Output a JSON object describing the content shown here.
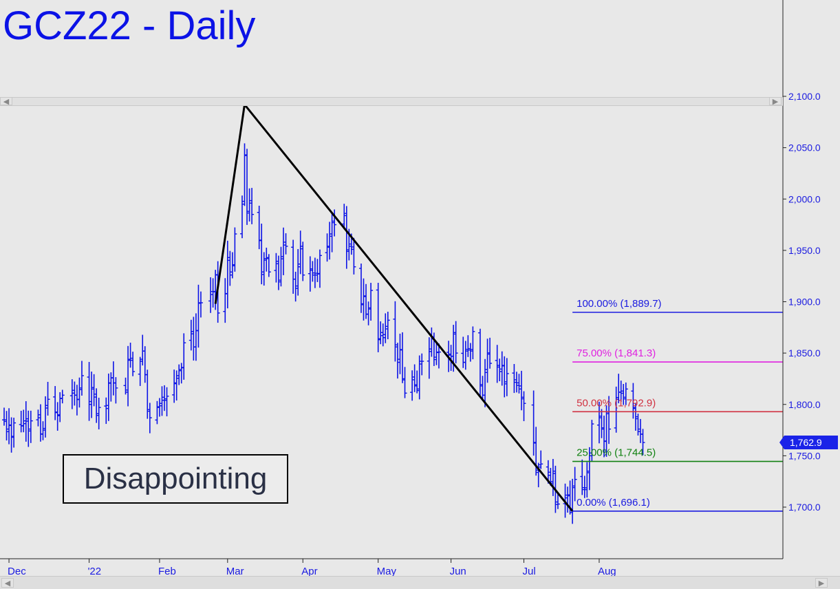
{
  "title": "GCZ22 - Daily",
  "annotation": "Disappointing",
  "last_price_label": "1,762.9",
  "colors": {
    "price_bars": "#0b12e6",
    "trendline": "#000000",
    "fib_100": "#1a1ae0",
    "fib_75": "#e020e0",
    "fib_50": "#d03040",
    "fib_25": "#108010",
    "fib_0": "#1a1ae0",
    "background": "#e8e8e8"
  },
  "scrollbar": {
    "left_icon": "chevron-left-icon",
    "right_icon": "chevron-right-icon"
  },
  "chart_data": {
    "type": "ohlc",
    "y_ticks": [
      "2,100.0",
      "2,050.0",
      "2,000.0",
      "1,950.0",
      "1,900.0",
      "1,850.0",
      "1,800.0",
      "1,750.0",
      "1,700.0"
    ],
    "y_tick_values": [
      2100,
      2050,
      2000,
      1950,
      1900,
      1850,
      1800,
      1750,
      1700
    ],
    "x_ticks": [
      "Dec",
      "'22",
      "Feb",
      "Mar",
      "Apr",
      "May",
      "Jun",
      "Jul",
      "Aug"
    ],
    "x_tick_dates": [
      "2021-12-01",
      "2022-01-03",
      "2022-02-01",
      "2022-03-01",
      "2022-04-01",
      "2022-05-02",
      "2022-06-01",
      "2022-07-01",
      "2022-08-01"
    ],
    "x_range": [
      "2021-11-29",
      "2022-09-28"
    ],
    "y_range": [
      1650,
      2110
    ],
    "fib_levels": [
      {
        "label": "100.00% (1,889.7)",
        "value": 1889.7,
        "color": "#1a1ae0"
      },
      {
        "label": "75.00% (1,841.3)",
        "value": 1841.3,
        "color": "#e020e0"
      },
      {
        "label": "50.00% (1,792.9)",
        "value": 1792.9,
        "color": "#d03040"
      },
      {
        "label": "25.00% (1,744.5)",
        "value": 1744.5,
        "color": "#108010"
      },
      {
        "label": "0.00% (1,696.1)",
        "value": 1696.1,
        "color": "#1a1ae0"
      }
    ],
    "fib_start_date": "2022-07-21",
    "trendline_points": [
      {
        "date": "2022-02-24",
        "value": 1898
      },
      {
        "date": "2022-03-08",
        "value": 2092
      },
      {
        "date": "2022-07-21",
        "value": 1696.1
      }
    ],
    "daily_closes": [
      [
        "2021-11-29",
        1785
      ],
      [
        "2021-11-30",
        1776
      ],
      [
        "2021-12-01",
        1780
      ],
      [
        "2021-12-02",
        1768
      ],
      [
        "2021-12-03",
        1782
      ],
      [
        "2021-12-06",
        1779
      ],
      [
        "2021-12-07",
        1784
      ],
      [
        "2021-12-08",
        1786
      ],
      [
        "2021-12-09",
        1776
      ],
      [
        "2021-12-10",
        1784
      ],
      [
        "2021-12-13",
        1787
      ],
      [
        "2021-12-14",
        1771
      ],
      [
        "2021-12-15",
        1775
      ],
      [
        "2021-12-16",
        1799
      ],
      [
        "2021-12-17",
        1805
      ],
      [
        "2021-12-20",
        1792
      ],
      [
        "2021-12-21",
        1789
      ],
      [
        "2021-12-22",
        1806
      ],
      [
        "2021-12-23",
        1809
      ],
      [
        "2021-12-27",
        1811
      ],
      [
        "2021-12-28",
        1809
      ],
      [
        "2021-12-29",
        1805
      ],
      [
        "2021-12-30",
        1816
      ],
      [
        "2021-12-31",
        1828
      ],
      [
        "2022-01-03",
        1800
      ],
      [
        "2022-01-04",
        1815
      ],
      [
        "2022-01-05",
        1810
      ],
      [
        "2022-01-06",
        1791
      ],
      [
        "2022-01-07",
        1797
      ],
      [
        "2022-01-10",
        1799
      ],
      [
        "2022-01-11",
        1821
      ],
      [
        "2022-01-12",
        1826
      ],
      [
        "2022-01-13",
        1821
      ],
      [
        "2022-01-14",
        1816
      ],
      [
        "2022-01-18",
        1814
      ],
      [
        "2022-01-19",
        1843
      ],
      [
        "2022-01-20",
        1843
      ],
      [
        "2022-01-21",
        1832
      ],
      [
        "2022-01-24",
        1842
      ],
      [
        "2022-01-25",
        1852
      ],
      [
        "2022-01-26",
        1829
      ],
      [
        "2022-01-27",
        1795
      ],
      [
        "2022-01-28",
        1787
      ],
      [
        "2022-01-31",
        1797
      ],
      [
        "2022-02-01",
        1801
      ],
      [
        "2022-02-02",
        1807
      ],
      [
        "2022-02-03",
        1804
      ],
      [
        "2022-02-04",
        1808
      ],
      [
        "2022-02-07",
        1821
      ],
      [
        "2022-02-08",
        1828
      ],
      [
        "2022-02-09",
        1834
      ],
      [
        "2022-02-10",
        1836
      ],
      [
        "2022-02-11",
        1860
      ],
      [
        "2022-02-14",
        1871
      ],
      [
        "2022-02-15",
        1856
      ],
      [
        "2022-02-16",
        1872
      ],
      [
        "2022-02-17",
        1899
      ],
      [
        "2022-02-18",
        1899
      ],
      [
        "2022-02-22",
        1907
      ],
      [
        "2022-02-23",
        1910
      ],
      [
        "2022-02-24",
        1926
      ],
      [
        "2022-02-25",
        1889
      ],
      [
        "2022-02-28",
        1908
      ],
      [
        "2022-03-01",
        1943
      ],
      [
        "2022-03-02",
        1926
      ],
      [
        "2022-03-03",
        1935
      ],
      [
        "2022-03-04",
        1966
      ],
      [
        "2022-03-07",
        1995
      ],
      [
        "2022-03-08",
        2043
      ],
      [
        "2022-03-09",
        1988
      ],
      [
        "2022-03-10",
        1996
      ],
      [
        "2022-03-11",
        1985
      ],
      [
        "2022-03-14",
        1960
      ],
      [
        "2022-03-15",
        1929
      ],
      [
        "2022-03-16",
        1942
      ],
      [
        "2022-03-17",
        1943
      ],
      [
        "2022-03-18",
        1929
      ],
      [
        "2022-03-21",
        1937
      ],
      [
        "2022-03-22",
        1921
      ],
      [
        "2022-03-23",
        1944
      ],
      [
        "2022-03-24",
        1958
      ],
      [
        "2022-03-25",
        1954
      ],
      [
        "2022-03-28",
        1922
      ],
      [
        "2022-03-29",
        1913
      ],
      [
        "2022-03-30",
        1934
      ],
      [
        "2022-03-31",
        1954
      ],
      [
        "2022-04-01",
        1926
      ],
      [
        "2022-04-04",
        1932
      ],
      [
        "2022-04-05",
        1928
      ],
      [
        "2022-04-06",
        1926
      ],
      [
        "2022-04-07",
        1927
      ],
      [
        "2022-04-08",
        1945
      ],
      [
        "2022-04-11",
        1954
      ],
      [
        "2022-04-12",
        1966
      ],
      [
        "2022-04-13",
        1977
      ],
      [
        "2022-04-14",
        1975
      ],
      [
        "2022-04-18",
        1986
      ],
      [
        "2022-04-19",
        1949
      ],
      [
        "2022-04-20",
        1954
      ],
      [
        "2022-04-21",
        1951
      ],
      [
        "2022-04-22",
        1934
      ],
      [
        "2022-04-25",
        1898
      ],
      [
        "2022-04-26",
        1905
      ],
      [
        "2022-04-27",
        1888
      ],
      [
        "2022-04-28",
        1894
      ],
      [
        "2022-04-29",
        1911
      ],
      [
        "2022-05-02",
        1863
      ],
      [
        "2022-05-03",
        1870
      ],
      [
        "2022-05-04",
        1868
      ],
      [
        "2022-05-05",
        1876
      ],
      [
        "2022-05-06",
        1882
      ],
      [
        "2022-05-09",
        1858
      ],
      [
        "2022-05-10",
        1841
      ],
      [
        "2022-05-11",
        1853
      ],
      [
        "2022-05-12",
        1825
      ],
      [
        "2022-05-13",
        1811
      ],
      [
        "2022-05-16",
        1824
      ],
      [
        "2022-05-17",
        1818
      ],
      [
        "2022-05-18",
        1815
      ],
      [
        "2022-05-19",
        1842
      ],
      [
        "2022-05-20",
        1842
      ],
      [
        "2022-05-23",
        1854
      ],
      [
        "2022-05-24",
        1866
      ],
      [
        "2022-05-25",
        1846
      ],
      [
        "2022-05-26",
        1851
      ],
      [
        "2022-05-27",
        1851
      ],
      [
        "2022-05-31",
        1848
      ],
      [
        "2022-06-01",
        1847
      ],
      [
        "2022-06-02",
        1870
      ],
      [
        "2022-06-03",
        1850
      ],
      [
        "2022-06-06",
        1841
      ],
      [
        "2022-06-07",
        1852
      ],
      [
        "2022-06-08",
        1853
      ],
      [
        "2022-06-09",
        1852
      ],
      [
        "2022-06-10",
        1871
      ],
      [
        "2022-06-13",
        1818
      ],
      [
        "2022-06-14",
        1809
      ],
      [
        "2022-06-15",
        1834
      ],
      [
        "2022-06-16",
        1849
      ],
      [
        "2022-06-17",
        1840
      ],
      [
        "2022-06-20",
        1838
      ],
      [
        "2022-06-21",
        1832
      ],
      [
        "2022-06-22",
        1838
      ],
      [
        "2022-06-23",
        1822
      ],
      [
        "2022-06-24",
        1830
      ],
      [
        "2022-06-27",
        1824
      ],
      [
        "2022-06-28",
        1821
      ],
      [
        "2022-06-29",
        1818
      ],
      [
        "2022-06-30",
        1807
      ],
      [
        "2022-07-01",
        1801
      ],
      [
        "2022-07-05",
        1763
      ],
      [
        "2022-07-06",
        1736
      ],
      [
        "2022-07-07",
        1739
      ],
      [
        "2022-07-08",
        1742
      ],
      [
        "2022-07-11",
        1731
      ],
      [
        "2022-07-12",
        1725
      ],
      [
        "2022-07-13",
        1735
      ],
      [
        "2022-07-14",
        1705
      ],
      [
        "2022-07-15",
        1703
      ],
      [
        "2022-07-18",
        1709
      ],
      [
        "2022-07-19",
        1711
      ],
      [
        "2022-07-20",
        1697
      ],
      [
        "2022-07-21",
        1719
      ],
      [
        "2022-07-22",
        1727
      ],
      [
        "2022-07-25",
        1719
      ],
      [
        "2022-07-26",
        1717
      ],
      [
        "2022-07-27",
        1735
      ],
      [
        "2022-07-28",
        1750
      ],
      [
        "2022-07-29",
        1781
      ],
      [
        "2022-08-01",
        1787
      ],
      [
        "2022-08-02",
        1776
      ],
      [
        "2022-08-03",
        1764
      ],
      [
        "2022-08-04",
        1791
      ],
      [
        "2022-08-05",
        1776
      ],
      [
        "2022-08-08",
        1805
      ],
      [
        "2022-08-09",
        1812
      ],
      [
        "2022-08-10",
        1813
      ],
      [
        "2022-08-11",
        1807
      ],
      [
        "2022-08-12",
        1815
      ],
      [
        "2022-08-15",
        1797
      ],
      [
        "2022-08-16",
        1788
      ],
      [
        "2022-08-17",
        1776
      ],
      [
        "2022-08-18",
        1771
      ],
      [
        "2022-08-19",
        1762.9
      ]
    ]
  }
}
